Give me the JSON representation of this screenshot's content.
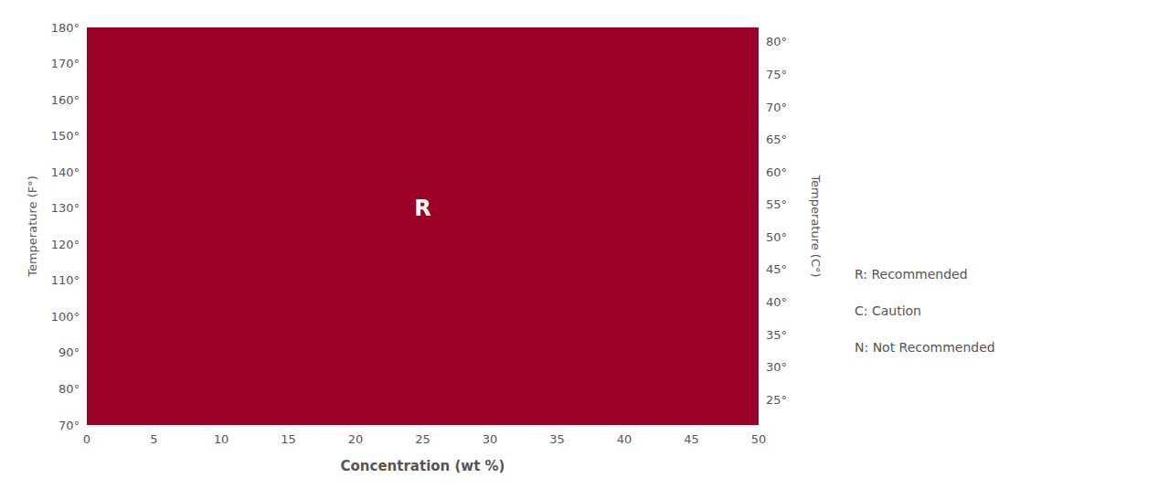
{
  "chart_data": {
    "type": "region",
    "color": "#9B0027",
    "xlabel": "Concentration (wt %)",
    "ylabel": "Temperature (F°)",
    "y2label": "Temperature (C°)",
    "xlim": [
      0,
      50
    ],
    "ylim": [
      70,
      180
    ],
    "y2lim": [
      21.11111111111111,
      82.22222222222223
    ],
    "xticks": [
      0,
      5,
      10,
      15,
      20,
      25,
      30,
      35,
      40,
      45,
      50
    ],
    "yticks": [
      {
        "value": 70,
        "label": "70°"
      },
      {
        "value": 80,
        "label": "80°"
      },
      {
        "value": 90,
        "label": "90°"
      },
      {
        "value": 100,
        "label": "100°"
      },
      {
        "value": 110,
        "label": "110°"
      },
      {
        "value": 120,
        "label": "120°"
      },
      {
        "value": 130,
        "label": "130°"
      },
      {
        "value": 140,
        "label": "140°"
      },
      {
        "value": 150,
        "label": "150°"
      },
      {
        "value": 160,
        "label": "160°"
      },
      {
        "value": 170,
        "label": "170°"
      },
      {
        "value": 180,
        "label": "180°"
      }
    ],
    "y2ticks": [
      {
        "value": 25,
        "label": "25°"
      },
      {
        "value": 30,
        "label": "30°"
      },
      {
        "value": 35,
        "label": "35°"
      },
      {
        "value": 40,
        "label": "40°"
      },
      {
        "value": 45,
        "label": "45°"
      },
      {
        "value": 50,
        "label": "50°"
      },
      {
        "value": 55,
        "label": "55°"
      },
      {
        "value": 60,
        "label": "60°"
      },
      {
        "value": 65,
        "label": "65°"
      },
      {
        "value": 70,
        "label": "70°"
      },
      {
        "value": 75,
        "label": "75°"
      },
      {
        "value": 80,
        "label": "80°"
      }
    ],
    "annotations": [
      {
        "text": "R",
        "x": 25,
        "y": 130,
        "color": "#FFFFFF"
      }
    ],
    "legend_entries": [
      "R: Recommended",
      "C: Caution",
      "N: Not Recommended"
    ],
    "grid": false
  }
}
